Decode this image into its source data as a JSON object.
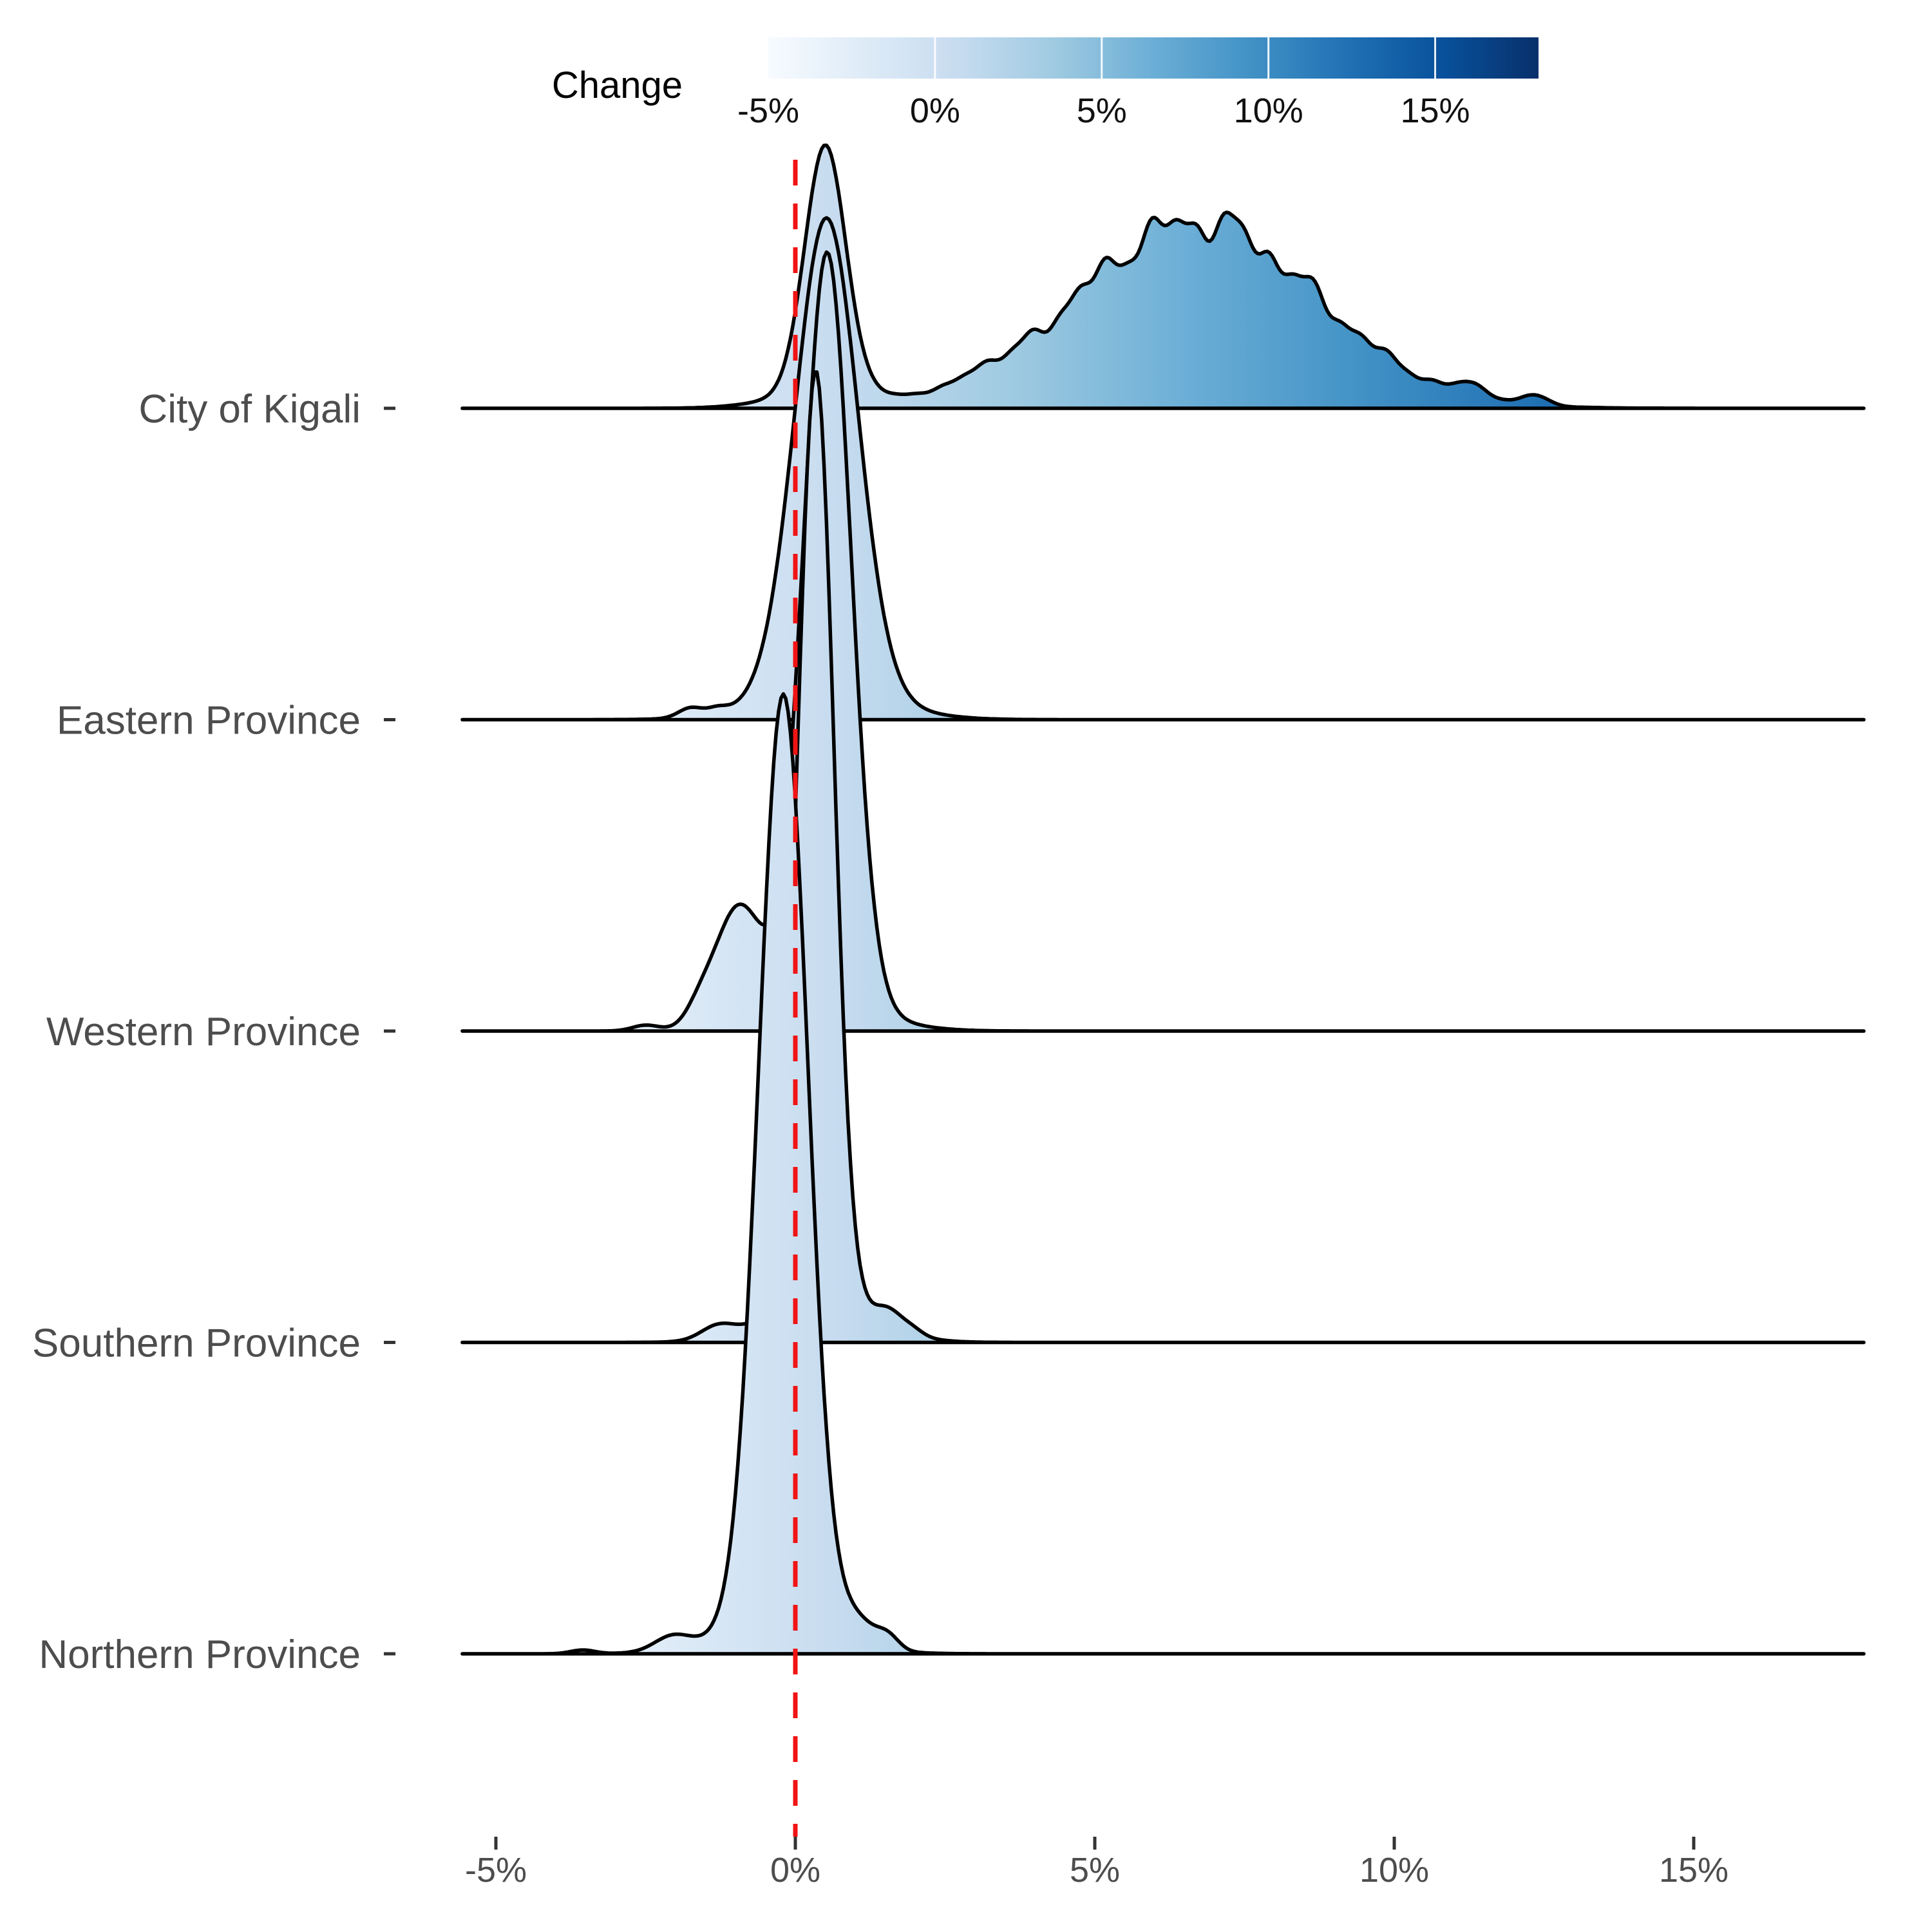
{
  "chart_data": {
    "type": "area",
    "subtype": "ridgeline-density",
    "title": "",
    "legend": {
      "title": "Change",
      "tick_labels": [
        "-5%",
        "0%",
        "5%",
        "10%",
        "15%"
      ],
      "tick_values": [
        -5,
        0,
        5,
        10,
        15
      ],
      "color_domain": [
        -5.0,
        18.1
      ],
      "position": "top"
    },
    "xlabel": "",
    "ylabel": "",
    "x_axis": {
      "tick_labels": [
        "-5%",
        "0%",
        "5%",
        "10%",
        "15%"
      ],
      "tick_values": [
        -5,
        0,
        5,
        10,
        15
      ],
      "range": [
        -5.56,
        17.84
      ],
      "unit": "percent"
    },
    "categories": [
      "City of Kigali",
      "Eastern Province",
      "Western Province",
      "Southern Province",
      "Northern Province"
    ],
    "zero_line": {
      "value": 0,
      "color": "#F01414",
      "style": "dashed"
    },
    "grid": false,
    "palette_blues": [
      "#f7fbff",
      "#deebf7",
      "#c6dbef",
      "#9ecae1",
      "#6baed6",
      "#4292c6",
      "#2171b5",
      "#08519c",
      "#08306b"
    ],
    "outline_color": "#000000",
    "axis_text_color": "#4d4d4d",
    "tick_mark_color": "#333333",
    "series": [
      {
        "name": "City of Kigali",
        "summary": "bimodal: sharp mode at ~0.5% (rel. height 0.79) and broad noisy mode at ~6.7% (rel. height 0.6) spanning ~2.5% to 14%",
        "peaks": [
          {
            "mu": 0.5,
            "sigma": 0.34,
            "height": 0.79
          },
          {
            "mu": 0.5,
            "sigma": 0.85,
            "height": 0.05
          },
          {
            "mu": 6.7,
            "sigma": 2.0,
            "height": 0.6,
            "wiggle": true
          },
          {
            "mu": 3.05,
            "sigma": 0.22,
            "height": 0.028
          },
          {
            "mu": 11.3,
            "sigma": 0.25,
            "height": 0.04
          },
          {
            "mu": 12.35,
            "sigma": 0.22,
            "height": 0.032
          }
        ]
      },
      {
        "name": "Eastern Province",
        "summary": "single sharp mode at ~0.5% (rel. height 1.52), support ~-2.2% to 2.8%",
        "peaks": [
          {
            "mu": 0.52,
            "sigma": 0.52,
            "height": 1.52
          },
          {
            "mu": 0.5,
            "sigma": 1.05,
            "height": 0.09
          },
          {
            "mu": -1.75,
            "sigma": 0.2,
            "height": 0.03
          },
          {
            "mu": -1.3,
            "sigma": 0.16,
            "height": 0.018
          }
        ]
      },
      {
        "name": "Western Province",
        "summary": "sharp mode at ~0.5% (rel. height 2.41) with left shoulder at ~-1%",
        "peaks": [
          {
            "mu": 0.53,
            "sigma": 0.4,
            "height": 2.41
          },
          {
            "mu": -0.95,
            "sigma": 0.4,
            "height": 0.37
          },
          {
            "mu": 0.4,
            "sigma": 0.95,
            "height": 0.09
          },
          {
            "mu": -1.6,
            "sigma": 0.22,
            "height": 0.045
          },
          {
            "mu": -2.5,
            "sigma": 0.22,
            "height": 0.018
          }
        ]
      },
      {
        "name": "Southern Province",
        "summary": "very sharp mode at ~0.35% (rel. height 2.98), small right bump near 1.6%",
        "peaks": [
          {
            "mu": 0.34,
            "sigma": 0.3,
            "height": 2.98
          },
          {
            "mu": 0.4,
            "sigma": 0.85,
            "height": 0.14
          },
          {
            "mu": 1.55,
            "sigma": 0.22,
            "height": 0.055
          },
          {
            "mu": 1.95,
            "sigma": 0.18,
            "height": 0.02
          },
          {
            "mu": -1.3,
            "sigma": 0.28,
            "height": 0.04
          }
        ]
      },
      {
        "name": "Northern Province",
        "summary": "sharp mode slightly left of 0 at ~-0.2% (rel. height 2.99), support ~-2.3% to 1.9%",
        "peaks": [
          {
            "mu": -0.2,
            "sigma": 0.41,
            "height": 2.99
          },
          {
            "mu": -0.3,
            "sigma": 0.95,
            "height": 0.09
          },
          {
            "mu": 1.05,
            "sigma": 0.3,
            "height": 0.075
          },
          {
            "mu": 1.55,
            "sigma": 0.18,
            "height": 0.04
          },
          {
            "mu": -2.05,
            "sigma": 0.3,
            "height": 0.045
          },
          {
            "mu": -3.55,
            "sigma": 0.2,
            "height": 0.012
          }
        ]
      }
    ]
  }
}
